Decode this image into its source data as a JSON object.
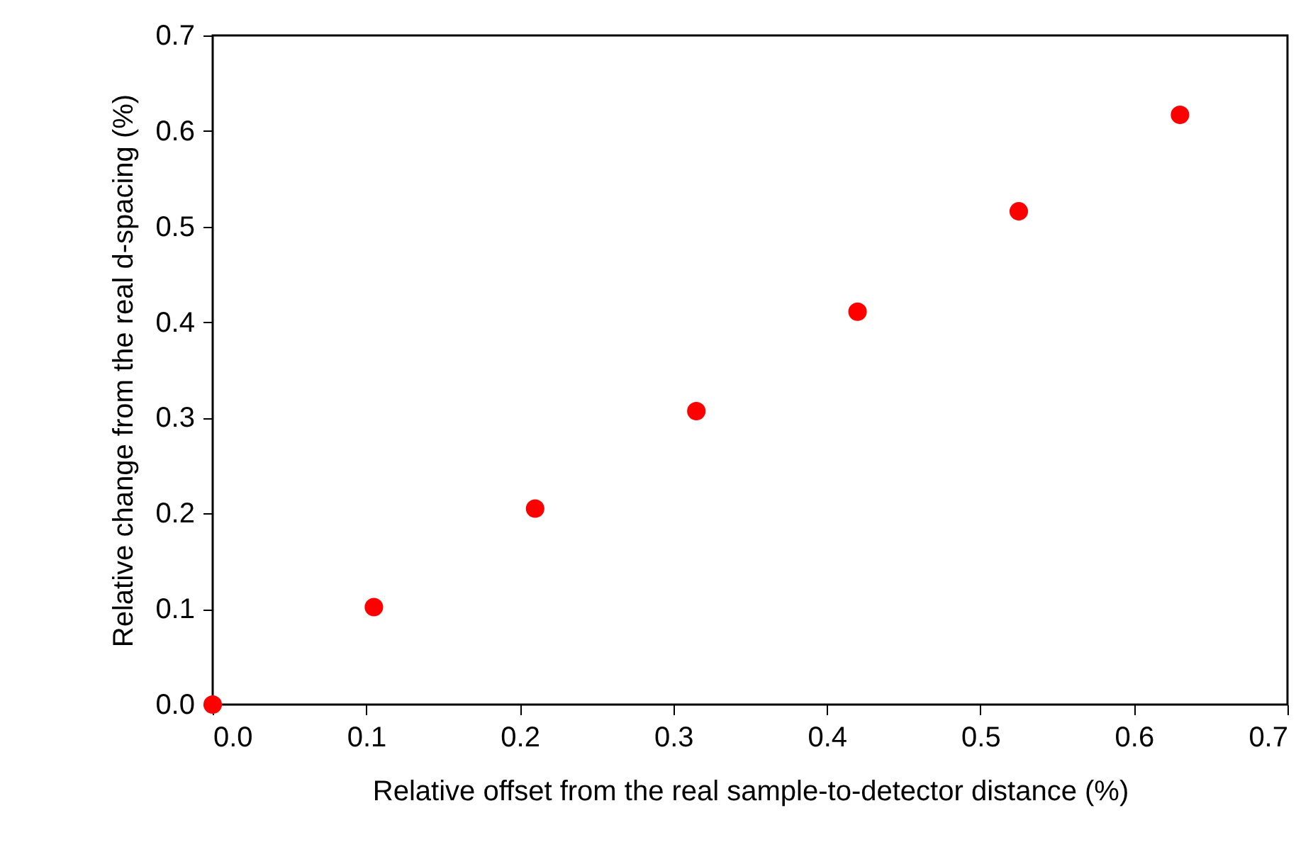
{
  "chart_data": {
    "type": "scatter",
    "xlabel": "Relative offset from the real sample-to-detector distance (%)",
    "ylabel": "Relative change from the real d-spacing (%)",
    "x": [
      0,
      0.105,
      0.21,
      0.315,
      0.42,
      0.525,
      0.63
    ],
    "series": [
      {
        "color": "#ff0000",
        "values": [
          0,
          0.102,
          0.205,
          0.307,
          0.411,
          0.516,
          0.617
        ]
      }
    ],
    "xlim": [
      0,
      0.7
    ],
    "xticks": [
      {
        "value": 0,
        "label": "0.0"
      },
      0.1,
      0.2,
      0.3,
      0.4,
      0.5,
      0.6,
      0.7
    ],
    "ylim": [
      0,
      0.7
    ],
    "yticks": [
      {
        "value": 0,
        "label": "0.0"
      },
      0.1,
      0.2,
      0.3,
      0.4,
      0.5,
      0.6,
      0.7
    ],
    "marker": "circle",
    "grid": false,
    "legend": false
  }
}
